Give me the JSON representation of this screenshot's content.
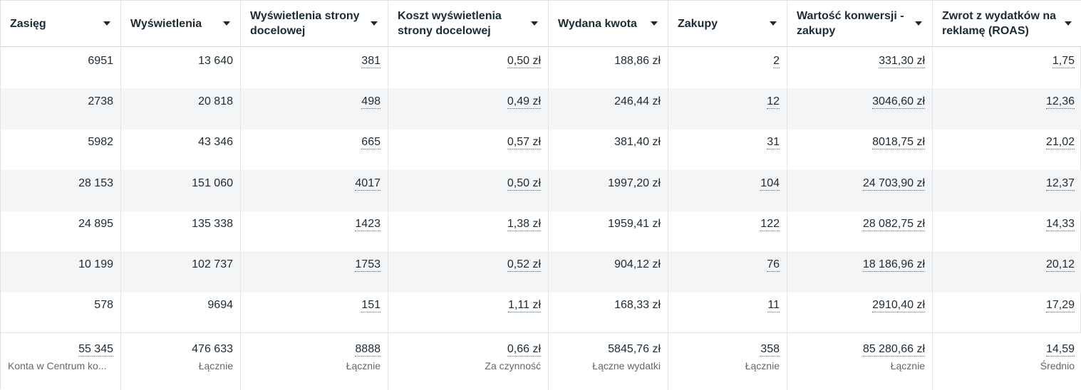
{
  "columns": [
    {
      "label": "Zasięg"
    },
    {
      "label": "Wyświetlenia"
    },
    {
      "label": "Wyświetlenia strony docelowej"
    },
    {
      "label": "Koszt wyświetlenia strony docelowej"
    },
    {
      "label": "Wydana kwota"
    },
    {
      "label": "Zakupy"
    },
    {
      "label": "Wartość konwersji - zakupy"
    },
    {
      "label": "Zwrot z wydatków na reklamę (ROAS)"
    }
  ],
  "rows": [
    [
      "6951",
      "13 640",
      "381",
      "0,50 zł",
      "188,86 zł",
      "2",
      "331,30 zł",
      "1,75"
    ],
    [
      "2738",
      "20 818",
      "498",
      "0,49 zł",
      "246,44 zł",
      "12",
      "3046,60 zł",
      "12,36"
    ],
    [
      "5982",
      "43 346",
      "665",
      "0,57 zł",
      "381,40 zł",
      "31",
      "8018,75 zł",
      "21,02"
    ],
    [
      "28 153",
      "151 060",
      "4017",
      "0,50 zł",
      "1997,20 zł",
      "104",
      "24 703,90 zł",
      "12,37"
    ],
    [
      "24 895",
      "135 338",
      "1423",
      "1,38 zł",
      "1959,41 zł",
      "122",
      "28 082,75 zł",
      "14,33"
    ],
    [
      "10 199",
      "102 737",
      "1753",
      "0,52 zł",
      "904,12 zł",
      "76",
      "18 186,96 zł",
      "20,12"
    ],
    [
      "578",
      "9694",
      "151",
      "1,11 zł",
      "168,33 zł",
      "11",
      "2910,40 zł",
      "17,29"
    ]
  ],
  "totals": [
    {
      "value": "55 345",
      "sub": "Konta w Centrum ko..."
    },
    {
      "value": "476 633",
      "sub": "Łącznie"
    },
    {
      "value": "8888",
      "sub": "Łącznie"
    },
    {
      "value": "0,66 zł",
      "sub": "Za czynność"
    },
    {
      "value": "5845,76 zł",
      "sub": "Łączne wydatki"
    },
    {
      "value": "358",
      "sub": "Łącznie"
    },
    {
      "value": "85 280,66 zł",
      "sub": "Łącznie"
    },
    {
      "value": "14,59",
      "sub": "Średnio"
    }
  ]
}
